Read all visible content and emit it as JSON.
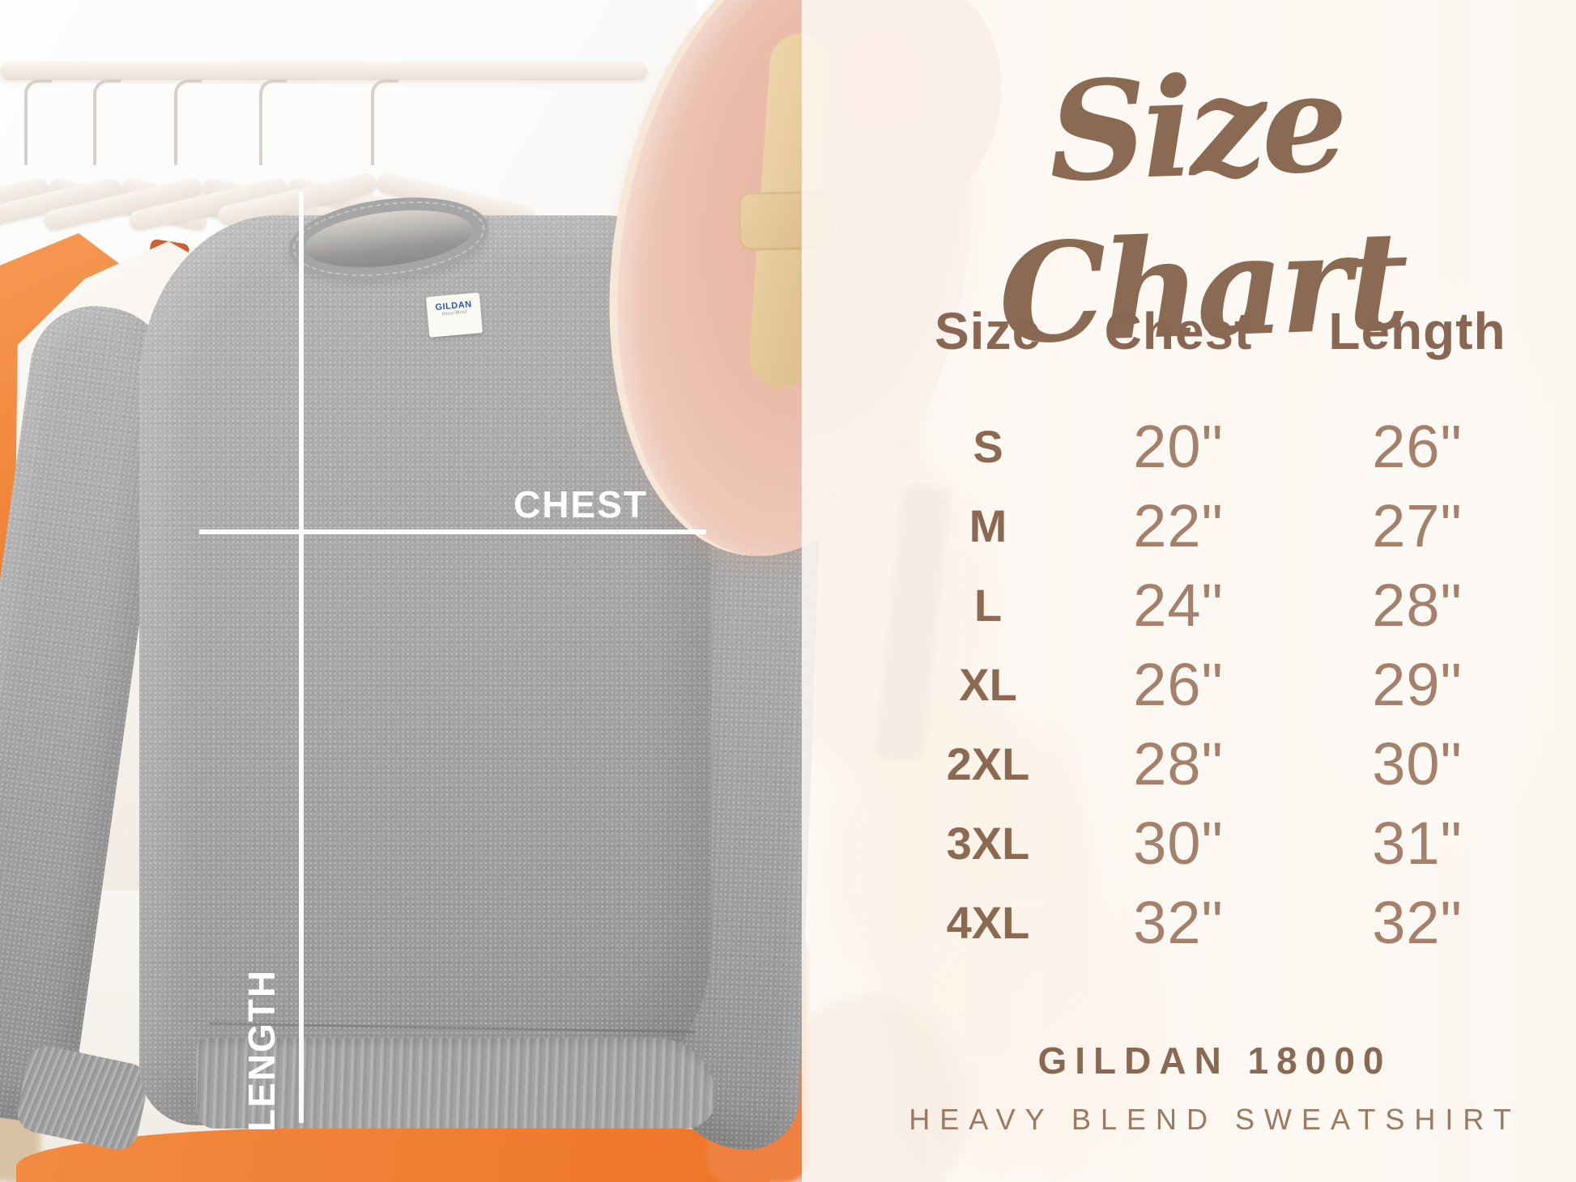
{
  "photo": {
    "chest_label": "CHEST",
    "length_label": "LENGTH",
    "neck_tag": {
      "brand": "GILDAN",
      "line": "Heavy Blend"
    }
  },
  "panel": {
    "title": "Size Chart",
    "footer": {
      "line1": "GILDAN 18000",
      "line2": "HEAVY BLEND SWEATSHIRT"
    }
  },
  "chart_data": {
    "type": "table",
    "title": "Size Chart",
    "columns": [
      "Size",
      "Chest",
      "Length"
    ],
    "rows": [
      {
        "size": "S",
        "chest": "20\"",
        "length": "26\""
      },
      {
        "size": "M",
        "chest": "22\"",
        "length": "27\""
      },
      {
        "size": "L",
        "chest": "24\"",
        "length": "28\""
      },
      {
        "size": "XL",
        "chest": "26\"",
        "length": "29\""
      },
      {
        "size": "2XL",
        "chest": "28\"",
        "length": "30\""
      },
      {
        "size": "3XL",
        "chest": "30\"",
        "length": "31\""
      },
      {
        "size": "4XL",
        "chest": "32\"",
        "length": "32\""
      }
    ],
    "product": "Gildan 18000 Heavy Blend Sweatshirt",
    "units": "inches"
  },
  "colors": {
    "accent_brown": "#8a6a52",
    "value_brown": "#a5816b",
    "orange_garment": "#ee7a2f",
    "heather_gray": "#a6a6a6",
    "hat_pink": "#ecc0ae",
    "hat_band_tan": "#e2c496",
    "measure_line_white": "#ffffff",
    "panel_overlay": "#fdf9f4"
  }
}
